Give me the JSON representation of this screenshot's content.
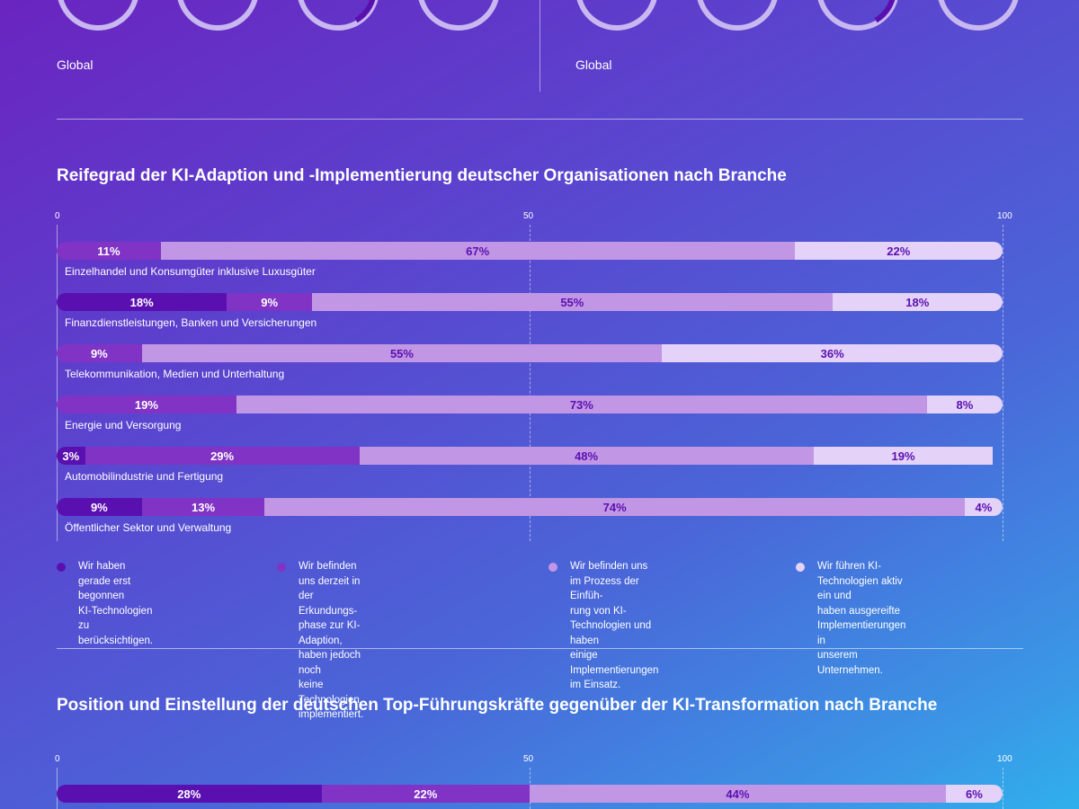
{
  "top_section": {
    "left_region_label": "Global",
    "right_region_label": "Global"
  },
  "colors": {
    "level1": "#5a10b0",
    "level2": "#8033c4",
    "level3": "#c196e4",
    "level4": "#e4d2f8"
  },
  "chart_data": [
    {
      "type": "bar",
      "orientation": "horizontal-stacked-100",
      "title": "Reifegrad der KI-Adaption und -Implementierung deutscher Organisationen nach Branche",
      "xlim": [
        0,
        100
      ],
      "ticks": [
        "0",
        "50",
        "100"
      ],
      "categories": [
        "Einzelhandel und Konsumgüter inklusive Luxusgüter",
        "Finanzdienstleistungen, Banken und Versicherungen",
        "Telekommunikation, Medien und Unterhaltung",
        "Energie und Versorgung",
        "Automobilindustrie und Fertigung",
        "Öffentlicher Sektor und Verwaltung"
      ],
      "series": [
        {
          "name": "Wir haben gerade erst begonnen KI-Technologien zu berücksichtigen.",
          "values": [
            0,
            18,
            0,
            0,
            3,
            9
          ]
        },
        {
          "name": "Wir befinden uns derzeit in der Erkundungsphase zur KI-Adaption, haben jedoch noch keine Technologien implementiert.",
          "values": [
            11,
            9,
            9,
            19,
            29,
            13
          ]
        },
        {
          "name": "Wir befinden uns im Prozess der Einführung von KI-Technologien und haben einige Implementierungen im Einsatz.",
          "values": [
            67,
            55,
            55,
            73,
            48,
            74
          ]
        },
        {
          "name": "Wir führen KI-Technologien aktiv ein und haben ausgereifte Implementierungen in unserem Unternehmen.",
          "values": [
            22,
            18,
            36,
            8,
            19,
            4
          ]
        }
      ],
      "legend": [
        "Wir haben gerade erst begonnen\nKI-Technologien zu berücksichtigen.",
        "Wir befinden uns derzeit in der Erkundungs-\nphase zur KI-Adaption, haben jedoch noch\nkeine Technologien implementiert.",
        "Wir befinden uns im Prozess der Einfüh-\nrung von KI-Technologien und haben\neinige Implementierungen im Einsatz.",
        "Wir führen KI-Technologien aktiv ein und\nhaben ausgereifte Implementierungen in\nunserem Unternehmen."
      ]
    },
    {
      "type": "bar",
      "orientation": "horizontal-stacked-100",
      "title": "Position und Einstellung der deutschen Top-Führungskräfte gegenüber der KI-Transformation nach Branche",
      "xlim": [
        0,
        100
      ],
      "ticks": [
        "0",
        "50",
        "100"
      ],
      "categories": [
        ""
      ],
      "series": [
        {
          "name": "level1",
          "values": [
            28
          ]
        },
        {
          "name": "level2",
          "values": [
            22
          ]
        },
        {
          "name": "level3",
          "values": [
            44
          ]
        },
        {
          "name": "level4",
          "values": [
            6
          ]
        }
      ]
    }
  ]
}
